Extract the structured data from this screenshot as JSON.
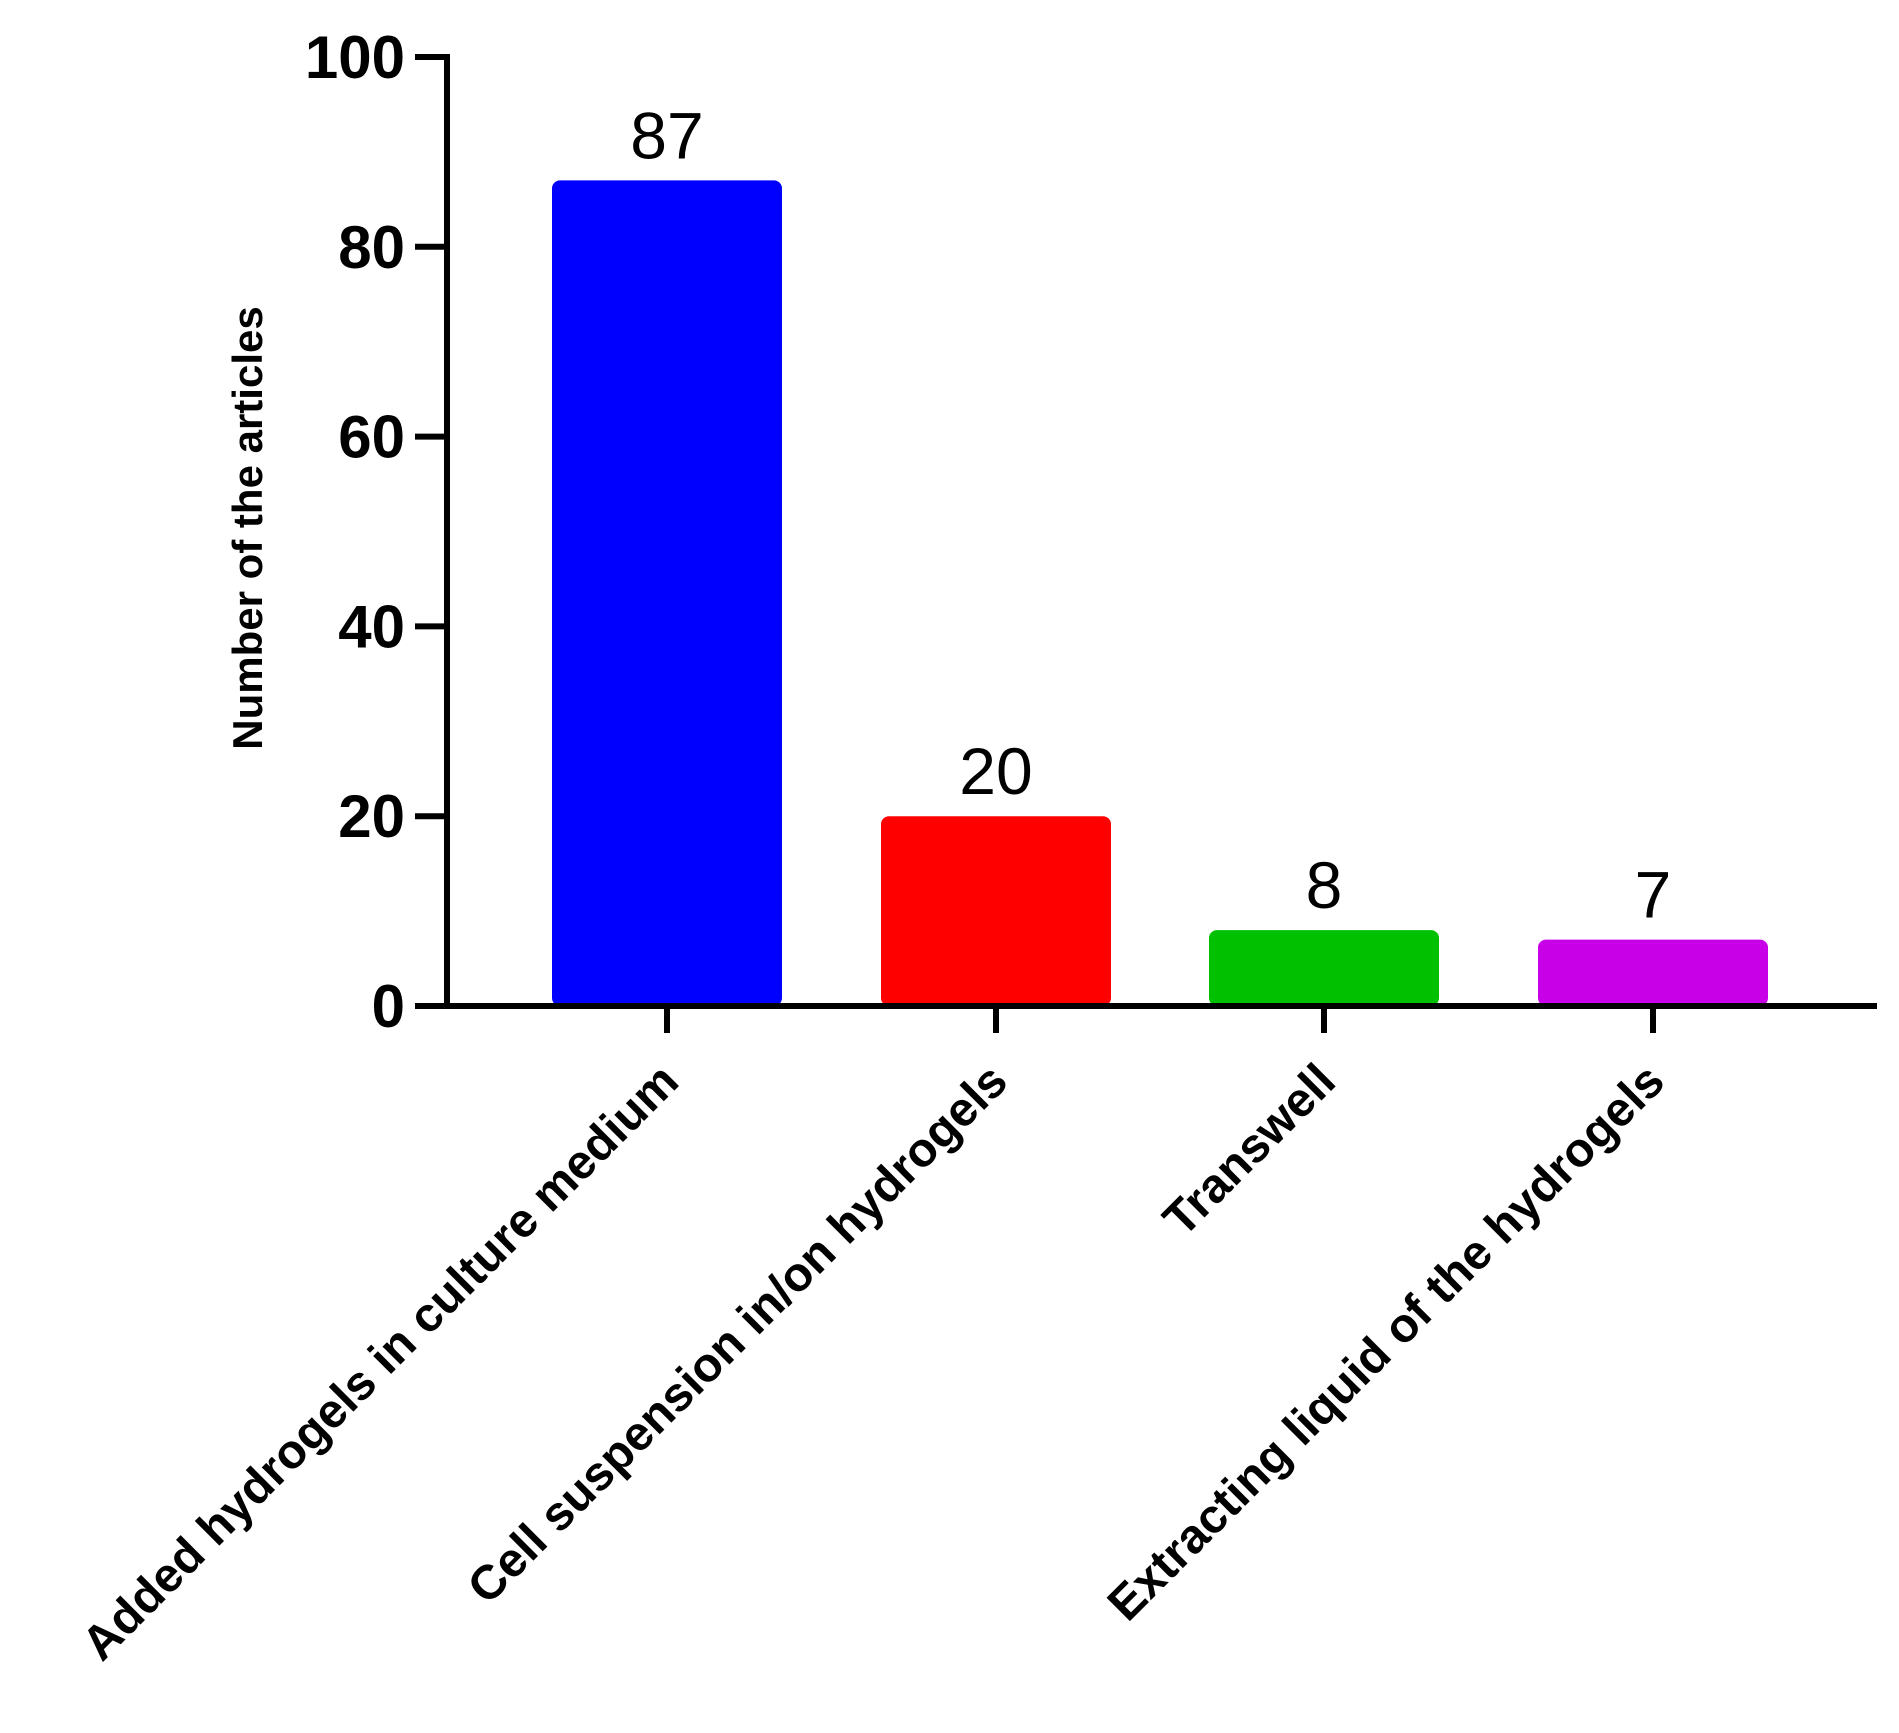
{
  "chart_data": {
    "type": "bar",
    "title": "",
    "xlabel": "",
    "ylabel": "Number of the articles",
    "ylim": [
      0,
      100
    ],
    "yticks": [
      0,
      20,
      40,
      60,
      80,
      100
    ],
    "categories": [
      "Added hydrogels in culture medium",
      "Cell suspension in/on hydrogels",
      "Transwell",
      "Extracting liquid of the hydrogels"
    ],
    "values": [
      87,
      20,
      8,
      7
    ],
    "data_labels": [
      "87",
      "20",
      "8",
      "7"
    ],
    "colors": [
      "#0000ff",
      "#ff0000",
      "#00c000",
      "#c800e8"
    ],
    "grid": false,
    "legend": "none"
  }
}
